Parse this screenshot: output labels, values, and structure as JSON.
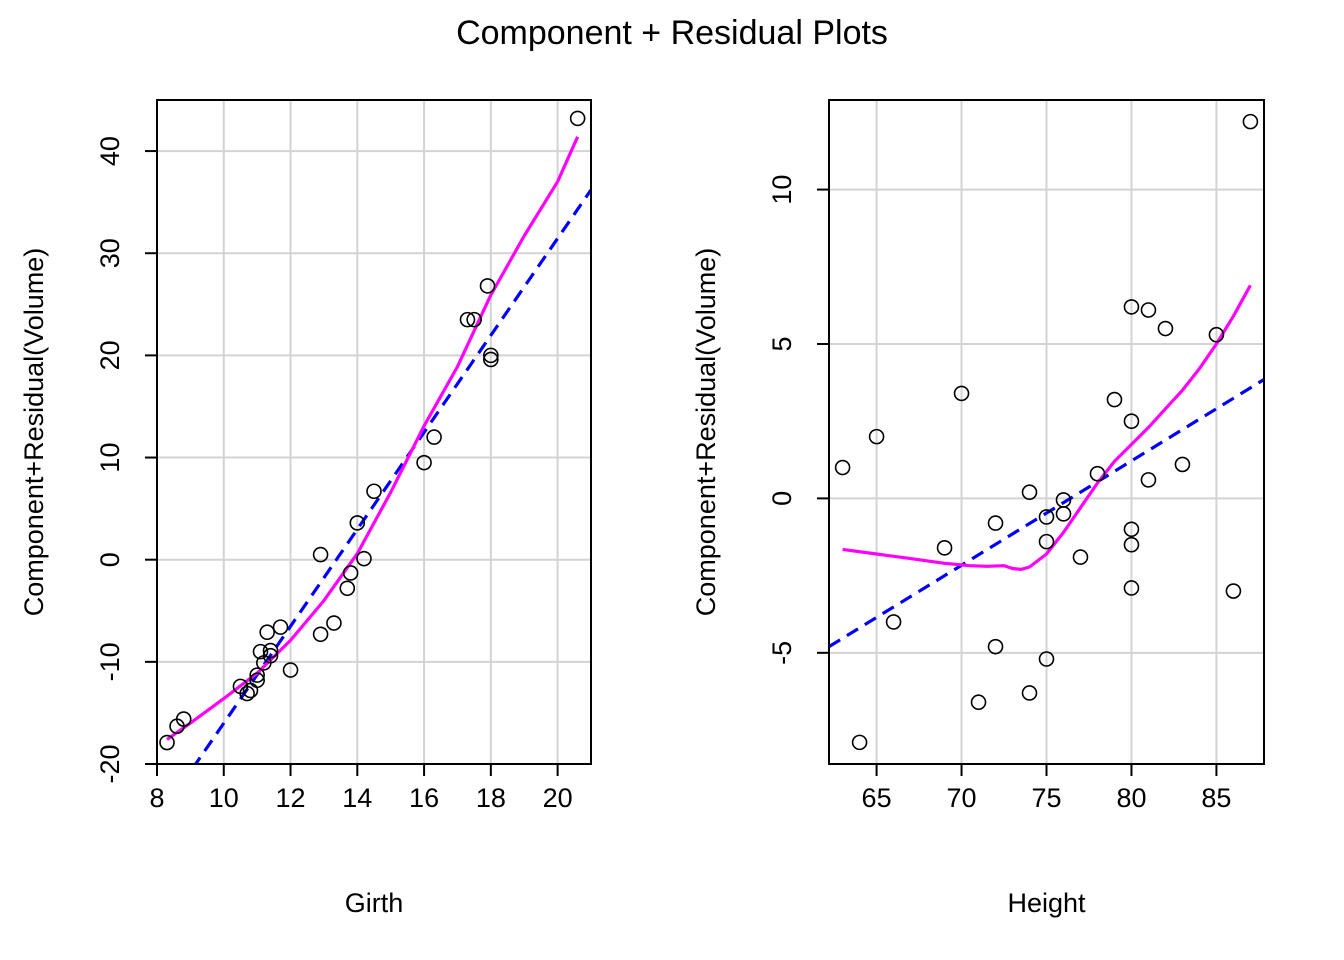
{
  "title": "Component + Residual Plots",
  "colors": {
    "line_fit": "#0000FF",
    "smooth": "#FF00FF",
    "points": "#000000",
    "grid": "#D3D3D3"
  },
  "chart_data": [
    {
      "type": "scatter",
      "xlabel": "Girth",
      "ylabel": "Component+Residual(Volume)",
      "xlim": [
        8,
        21
      ],
      "ylim": [
        -20,
        45
      ],
      "xticks": [
        8,
        10,
        12,
        14,
        16,
        18,
        20
      ],
      "yticks": [
        -20,
        -10,
        0,
        10,
        20,
        30,
        40
      ],
      "xtick_labels": [
        "8",
        "10",
        "12",
        "14",
        "16",
        "18",
        "20"
      ],
      "ytick_labels": [
        "-20",
        "-10",
        "0",
        "10",
        "20",
        "30",
        "40"
      ],
      "grid": true,
      "points": [
        [
          8.3,
          -17.9
        ],
        [
          8.6,
          -16.3
        ],
        [
          8.8,
          -15.6
        ],
        [
          10.5,
          -12.4
        ],
        [
          10.7,
          -13.1
        ],
        [
          10.8,
          -12.8
        ],
        [
          11.0,
          -11.8
        ],
        [
          11.0,
          -11.3
        ],
        [
          11.1,
          -9.0
        ],
        [
          11.2,
          -10.1
        ],
        [
          11.3,
          -7.1
        ],
        [
          11.4,
          -9.4
        ],
        [
          11.4,
          -8.9
        ],
        [
          11.7,
          -6.6
        ],
        [
          12.0,
          -10.8
        ],
        [
          12.9,
          -7.3
        ],
        [
          12.9,
          0.5
        ],
        [
          13.3,
          -6.2
        ],
        [
          13.7,
          -2.8
        ],
        [
          13.8,
          -1.3
        ],
        [
          14.0,
          3.6
        ],
        [
          14.2,
          0.1
        ],
        [
          14.5,
          6.7
        ],
        [
          16.0,
          9.5
        ],
        [
          16.3,
          12.0
        ],
        [
          17.3,
          23.5
        ],
        [
          17.5,
          23.5
        ],
        [
          17.9,
          26.8
        ],
        [
          18.0,
          20.0
        ],
        [
          18.0,
          19.6
        ],
        [
          20.6,
          43.2
        ]
      ],
      "fit_line": [
        [
          8.0,
          -25.5
        ],
        [
          21.0,
          36.2
        ]
      ],
      "smooth": [
        [
          8.3,
          -17.6
        ],
        [
          9.0,
          -16.0
        ],
        [
          10.0,
          -13.6
        ],
        [
          11.0,
          -11.1
        ],
        [
          12.0,
          -7.9
        ],
        [
          13.0,
          -4.0
        ],
        [
          14.0,
          0.6
        ],
        [
          15.0,
          6.6
        ],
        [
          16.0,
          13.1
        ],
        [
          17.0,
          18.9
        ],
        [
          18.0,
          25.9
        ],
        [
          19.0,
          31.7
        ],
        [
          20.0,
          37.0
        ],
        [
          20.6,
          41.4
        ]
      ]
    },
    {
      "type": "scatter",
      "xlabel": "Height",
      "ylabel": "Component+Residual(Volume)",
      "xlim": [
        62.2,
        87.8
      ],
      "ylim": [
        -8.6,
        12.9
      ],
      "xticks": [
        65,
        70,
        75,
        80,
        85
      ],
      "yticks": [
        -5,
        0,
        5,
        10
      ],
      "xtick_labels": [
        "65",
        "70",
        "75",
        "80",
        "85"
      ],
      "ytick_labels": [
        "-5",
        "0",
        "5",
        "10"
      ],
      "grid": true,
      "points": [
        [
          63,
          1.0
        ],
        [
          64,
          -7.9
        ],
        [
          65,
          2.0
        ],
        [
          66,
          -4.0
        ],
        [
          69,
          -1.6
        ],
        [
          70,
          3.4
        ],
        [
          71,
          -6.6
        ],
        [
          72,
          -0.8
        ],
        [
          72,
          -4.8
        ],
        [
          74,
          0.2
        ],
        [
          74,
          -6.3
        ],
        [
          75,
          -0.6
        ],
        [
          75,
          -1.4
        ],
        [
          75,
          -5.2
        ],
        [
          76,
          -0.05
        ],
        [
          76,
          -0.5
        ],
        [
          77,
          -1.9
        ],
        [
          78,
          0.8
        ],
        [
          79,
          3.2
        ],
        [
          80,
          6.2
        ],
        [
          80,
          2.5
        ],
        [
          80,
          -1.0
        ],
        [
          80,
          -1.5
        ],
        [
          80,
          -2.9
        ],
        [
          81,
          6.1
        ],
        [
          81,
          0.6
        ],
        [
          82,
          5.5
        ],
        [
          83,
          1.1
        ],
        [
          85,
          5.3
        ],
        [
          86,
          -3.0
        ],
        [
          87,
          12.2
        ]
      ],
      "fit_line": [
        [
          62.2,
          -4.8
        ],
        [
          87.8,
          3.85
        ]
      ],
      "smooth": [
        [
          63,
          -1.65
        ],
        [
          65,
          -1.8
        ],
        [
          67,
          -1.95
        ],
        [
          69,
          -2.1
        ],
        [
          70.5,
          -2.18
        ],
        [
          71.5,
          -2.2
        ],
        [
          72.5,
          -2.18
        ],
        [
          73,
          -2.27
        ],
        [
          73.5,
          -2.3
        ],
        [
          74,
          -2.22
        ],
        [
          75,
          -1.8
        ],
        [
          76,
          -1.1
        ],
        [
          77,
          -0.3
        ],
        [
          78,
          0.5
        ],
        [
          79,
          1.2
        ],
        [
          80,
          1.75
        ],
        [
          81,
          2.3
        ],
        [
          82,
          2.9
        ],
        [
          83,
          3.5
        ],
        [
          84,
          4.2
        ],
        [
          85,
          5.0
        ],
        [
          86,
          5.9
        ],
        [
          87,
          6.9
        ]
      ]
    }
  ]
}
